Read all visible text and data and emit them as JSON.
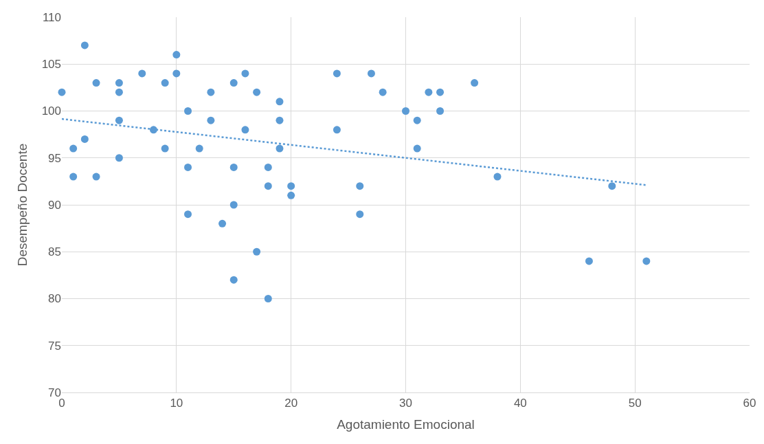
{
  "chart_data": {
    "type": "scatter",
    "xlabel": "Agotamiento Emocional",
    "ylabel": "Desempeño Docente",
    "xlim": [
      0,
      60
    ],
    "xticks": [
      0,
      10,
      20,
      30,
      40,
      50,
      60
    ],
    "ylim": [
      70,
      110
    ],
    "yticks": [
      70,
      75,
      80,
      85,
      90,
      95,
      100,
      105,
      110
    ],
    "grid": true,
    "marker": "circle",
    "series": [
      {
        "color": "#5b9bd5",
        "x": [
          0,
          1,
          1,
          2,
          2,
          3,
          3,
          5,
          5,
          5,
          5,
          7,
          8,
          9,
          9,
          10,
          10,
          11,
          11,
          11,
          12,
          13,
          13,
          14,
          15,
          15,
          15,
          15,
          16,
          16,
          17,
          17,
          18,
          18,
          18,
          19,
          19,
          19,
          20,
          20,
          24,
          24,
          26,
          26,
          27,
          28,
          30,
          31,
          31,
          32,
          33,
          33,
          36,
          38,
          46,
          48,
          51
        ],
        "values": [
          102,
          96,
          93,
          107,
          97,
          103,
          93,
          103,
          102,
          99,
          95,
          104,
          98,
          103,
          96,
          106,
          104,
          100,
          94,
          89,
          96,
          102,
          99,
          88,
          103,
          94,
          90,
          82,
          104,
          98,
          102,
          85,
          94,
          92,
          80,
          101,
          99,
          96,
          92,
          91,
          104,
          98,
          92,
          89,
          104,
          102,
          100,
          99,
          96,
          102,
          102,
          100,
          103,
          93,
          84,
          92,
          84
        ]
      },
      {
        "type": "line",
        "color": "#5b9bd5",
        "line_style": "dotted",
        "marker": "none",
        "x": [
          0,
          51
        ],
        "values": [
          99.15,
          92.1
        ]
      }
    ]
  }
}
